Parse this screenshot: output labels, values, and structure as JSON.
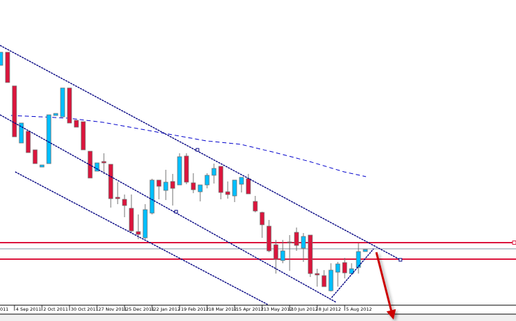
{
  "chart_data": {
    "type": "candlestick",
    "title": "",
    "xlabel": "",
    "ylabel": "",
    "ylim": [
      0,
      450
    ],
    "grid": false,
    "colors": {
      "bull": "#00bfff",
      "bear": "#dc143c",
      "outline": "#707070",
      "trendline": "#000080",
      "level": "#dc143c",
      "current_price": "#8090a0",
      "arrow": "#cc0000"
    },
    "x_tick_labels": [
      {
        "index": -2,
        "label": "011"
      },
      {
        "index": 2,
        "label": "4 Sep 2011"
      },
      {
        "index": 6,
        "label": "2 Oct 2011"
      },
      {
        "index": 10,
        "label": "30 Oct 2011"
      },
      {
        "index": 14,
        "label": "27 Nov 2011"
      },
      {
        "index": 18,
        "label": "25 Dec 2011"
      },
      {
        "index": 22,
        "label": "22 Jan 2012"
      },
      {
        "index": 26,
        "label": "19 Feb 2012"
      },
      {
        "index": 30,
        "label": "18 Mar 2012"
      },
      {
        "index": 34,
        "label": "15 Apr 2012"
      },
      {
        "index": 38,
        "label": "13 May 2012"
      },
      {
        "index": 42,
        "label": "10 Jun 2012"
      },
      {
        "index": 46,
        "label": "8 Jul 2012"
      },
      {
        "index": 50,
        "label": "5 Aug 2012"
      }
    ],
    "candles": [
      [
        355,
        374,
        355,
        374
      ],
      [
        374,
        374,
        330,
        330
      ],
      [
        325,
        325,
        251,
        251
      ],
      [
        242,
        271,
        242,
        271
      ],
      [
        259,
        259,
        228,
        228
      ],
      [
        232,
        232,
        212,
        212
      ],
      [
        207,
        210,
        207,
        210
      ],
      [
        212,
        283,
        212,
        283
      ],
      [
        282,
        285,
        282,
        285
      ],
      [
        280,
        322,
        280,
        322
      ],
      [
        322,
        322,
        271,
        271
      ],
      [
        275,
        275,
        265,
        265
      ],
      [
        273,
        273,
        232,
        232
      ],
      [
        230,
        230,
        191,
        191
      ],
      [
        201,
        213,
        201,
        213
      ],
      [
        215,
        227,
        197,
        213
      ],
      [
        211,
        211,
        148,
        161
      ],
      [
        163,
        185,
        153,
        161
      ],
      [
        160,
        167,
        134,
        151
      ],
      [
        147,
        167,
        111,
        114
      ],
      [
        113,
        138,
        102,
        109
      ],
      [
        104,
        153,
        102,
        145
      ],
      [
        140,
        190,
        138,
        188
      ],
      [
        188,
        188,
        160,
        179
      ],
      [
        173,
        203,
        159,
        185
      ],
      [
        186,
        197,
        151,
        176
      ],
      [
        181,
        227,
        181,
        222
      ],
      [
        223,
        227,
        182,
        185
      ],
      [
        184,
        198,
        169,
        174
      ],
      [
        171,
        181,
        157,
        181
      ],
      [
        181,
        198,
        176,
        195
      ],
      [
        195,
        212,
        183,
        205
      ],
      [
        208,
        208,
        160,
        170
      ],
      [
        171,
        186,
        161,
        167
      ],
      [
        165,
        188,
        156,
        188
      ],
      [
        182,
        192,
        170,
        192
      ],
      [
        190,
        197,
        168,
        168
      ],
      [
        157,
        165,
        141,
        143
      ],
      [
        141,
        142,
        104,
        123
      ],
      [
        121,
        130,
        83,
        85
      ],
      [
        94,
        101,
        52,
        73
      ],
      [
        71,
        101,
        67,
        85
      ],
      [
        98,
        108,
        56,
        97
      ],
      [
        112,
        119,
        85,
        93
      ],
      [
        89,
        111,
        69,
        106
      ],
      [
        108,
        108,
        47,
        52
      ],
      [
        52,
        59,
        33,
        50
      ],
      [
        49,
        57,
        33,
        33
      ],
      [
        27,
        67,
        26,
        57
      ],
      [
        54,
        69,
        33,
        66
      ],
      [
        68,
        75,
        45,
        53
      ],
      [
        52,
        67,
        52,
        59
      ],
      [
        61,
        96,
        52,
        84
      ],
      [
        84,
        87,
        84,
        87
      ]
    ],
    "candle_format": [
      "open",
      "high",
      "low",
      "close"
    ],
    "moving_average": [
      [
        1.5,
        282
      ],
      [
        5.9,
        280
      ],
      [
        9.9,
        278
      ],
      [
        14.9,
        272
      ],
      [
        19.9,
        263
      ],
      [
        24.9,
        254
      ],
      [
        29.9,
        245
      ],
      [
        34.9,
        240
      ],
      [
        39.9,
        228
      ],
      [
        44.9,
        215
      ],
      [
        49.9,
        200
      ],
      [
        53.1,
        193
      ]
    ],
    "trendlines": [
      {
        "from": [
          -0.1,
          384
        ],
        "to": [
          58.1,
          72
        ],
        "handles": [
          [
            28.6,
            232
          ],
          [
            58.1,
            72
          ]
        ]
      },
      {
        "from": [
          -0.1,
          283
        ],
        "to": [
          48.8,
          10
        ],
        "handles": [
          [
            25.5,
            142
          ]
        ]
      },
      {
        "from": [
          2.1,
          200
        ],
        "to": [
          38.8,
          7
        ],
        "handles": []
      },
      {
        "from": [
          48.1,
          17
        ],
        "to": [
          54.2,
          88
        ],
        "handles": []
      }
    ],
    "horizontal_levels": [
      97,
      73
    ],
    "current_price": 88,
    "arrow": {
      "from": [
        54.6,
        83
      ],
      "to": [
        57.1,
        -15
      ]
    }
  }
}
